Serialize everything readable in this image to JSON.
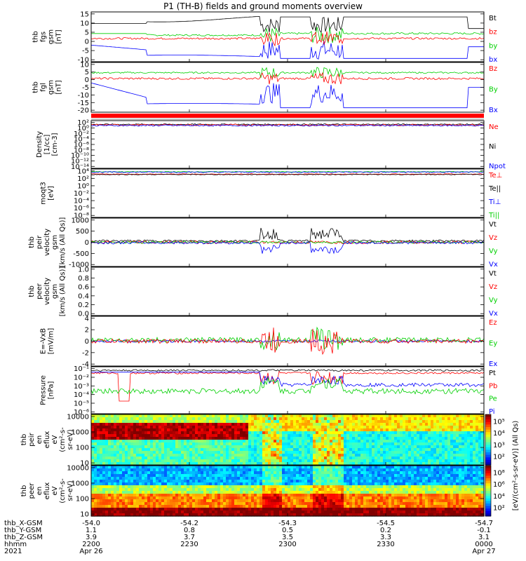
{
  "title": "P1 (TH-B) fields and ground moments overview",
  "colors": {
    "black": "#000000",
    "red": "#ff0000",
    "green": "#00d000",
    "blue": "#0000ff"
  },
  "chart_data": [
    {
      "type": "line",
      "id": "fgs",
      "ylabel": [
        "thb",
        "fgs",
        "gsm",
        "[nT]"
      ],
      "yticks": [
        "15",
        "10",
        "5",
        "0",
        "-5",
        "-10"
      ],
      "ylim": [
        -14,
        16
      ],
      "legend": [
        {
          "name": "Bt",
          "color": "#000000"
        },
        {
          "name": "bz",
          "color": "#ff0000"
        },
        {
          "name": "by",
          "color": "#00d000"
        },
        {
          "name": "bx",
          "color": "#0000ff"
        }
      ]
    },
    {
      "type": "line",
      "id": "fgl",
      "ylabel": [
        "thb",
        "fgl",
        "gsm",
        "[nT]"
      ],
      "yticks": [
        "10",
        "5",
        "0",
        "-5",
        "-10",
        "-15",
        "-20"
      ],
      "ylim": [
        -23,
        11
      ],
      "legend": [
        {
          "name": "Bz",
          "color": "#ff0000"
        },
        {
          "name": "By",
          "color": "#00d000"
        },
        {
          "name": "Bx",
          "color": "#0000ff"
        }
      ]
    },
    {
      "type": "line",
      "id": "density",
      "ylabel": [
        "Density",
        "[1/cc]",
        "[cm-3]"
      ],
      "yticks": [
        "10^2",
        "10^0",
        "10^-2",
        "10^-4",
        "10^-6",
        "10^-8",
        "10^-10",
        "10^-12",
        "10^-14"
      ],
      "legend": [
        {
          "name": "Ne",
          "color": "#ff0000"
        },
        {
          "name": "Ni",
          "color": "#000000"
        },
        {
          "name": "Npot",
          "color": "#0000ff"
        }
      ]
    },
    {
      "type": "line",
      "id": "temp",
      "ylabel": [
        "moqt3",
        "[eV]"
      ],
      "yticks": [
        "10^4",
        "10^2",
        "10^0",
        "10^-2",
        "10^-4",
        "10^-6",
        "10^-8"
      ],
      "legend": [
        {
          "name": "Te⊥",
          "color": "#ff0000"
        },
        {
          "name": "Te||",
          "color": "#000000"
        },
        {
          "name": "Ti⊥",
          "color": "#0000ff"
        },
        {
          "name": "Ti||",
          "color": "#00d000"
        }
      ]
    },
    {
      "type": "line",
      "id": "peir-vel",
      "ylabel": [
        "thb",
        "peir",
        "velocity",
        "gsm",
        "[km/s (All Qs)]"
      ],
      "yticks": [
        "1000",
        "500",
        "0",
        "-500",
        "-1000"
      ],
      "ylim": [
        -1000,
        1000
      ],
      "legend": [
        {
          "name": "Vt",
          "color": "#000000"
        },
        {
          "name": "Vz",
          "color": "#ff0000"
        },
        {
          "name": "Vy",
          "color": "#00d000"
        },
        {
          "name": "Vx",
          "color": "#0000ff"
        }
      ]
    },
    {
      "type": "line",
      "id": "peer-vel",
      "ylabel": [
        "thb",
        "peer",
        "velocity",
        "gsm",
        "[km/s (All Qs)]"
      ],
      "yticks": [
        "1.0",
        "0.8",
        "0.6",
        "0.4",
        "0.2",
        "0.0"
      ],
      "ylim": [
        0,
        1
      ],
      "legend": [
        {
          "name": "Vt",
          "color": "#000000"
        },
        {
          "name": "Vz",
          "color": "#ff0000"
        },
        {
          "name": "Vy",
          "color": "#00d000"
        },
        {
          "name": "Vx",
          "color": "#0000ff"
        }
      ]
    },
    {
      "type": "line",
      "id": "efield",
      "ylabel": [
        "E=-VxB",
        "[mV/m]"
      ],
      "yticks": [
        "4",
        "2",
        "0",
        "-2",
        "-4"
      ],
      "ylim": [
        -4,
        4
      ],
      "legend": [
        {
          "name": "Ez",
          "color": "#ff0000"
        },
        {
          "name": "Ey",
          "color": "#00d000"
        },
        {
          "name": "Ex",
          "color": "#0000ff"
        }
      ]
    },
    {
      "type": "line",
      "id": "pressure",
      "ylabel": [
        "Pressure",
        "[nPa]"
      ],
      "yticks": [
        "10^-1",
        "10^-2",
        "10^-3",
        "10^-4",
        "10^-5",
        "10^-6"
      ],
      "legend": [
        {
          "name": "Pt",
          "color": "#000000"
        },
        {
          "name": "Pb",
          "color": "#ff0000"
        },
        {
          "name": "Pe",
          "color": "#00d000"
        },
        {
          "name": "Pi",
          "color": "#0000ff"
        }
      ]
    },
    {
      "type": "heatmap",
      "id": "peir-spec",
      "ylabel": [
        "thb",
        "peir",
        "en",
        "eflux",
        "eV",
        "(cm^2-s-",
        "sr-eV)"
      ],
      "yticks": [
        "10000",
        "1000",
        "100",
        "10"
      ],
      "cbticks": [
        "10^5",
        "10^4",
        "10^3",
        "10^2"
      ]
    },
    {
      "type": "heatmap",
      "id": "peer-spec",
      "ylabel": [
        "thb",
        "peer",
        "en",
        "eflux",
        "eV",
        "(cm^2-s-",
        "sr-eV)"
      ],
      "yticks": [
        "10000",
        "1000",
        "100",
        "10"
      ],
      "cbticks": [
        "10^8",
        "10^6",
        "10^4",
        "10^2"
      ]
    }
  ],
  "colorbar_label": "[eV/(cm^2-s-sr-eV)] (All Qs)",
  "footer": {
    "row_labels": [
      "thb_X-GSM",
      "thb_Y-GSM",
      "thb_Z-GSM",
      "hhmm",
      "2021"
    ],
    "columns": [
      {
        "x": "-54.0",
        "y": "1.1",
        "z": "3.9",
        "time": "2200",
        "date": "Apr 26"
      },
      {
        "x": "-54.2",
        "y": "0.8",
        "z": "3.7",
        "time": "2230",
        "date": ""
      },
      {
        "x": "-54.3",
        "y": "0.5",
        "z": "3.5",
        "time": "2300",
        "date": ""
      },
      {
        "x": "-54.5",
        "y": "0.2",
        "z": "3.3",
        "time": "2330",
        "date": ""
      },
      {
        "x": "-54.7",
        "y": "-0.1",
        "z": "3.1",
        "time": "0000",
        "date": "Apr 27"
      }
    ]
  }
}
